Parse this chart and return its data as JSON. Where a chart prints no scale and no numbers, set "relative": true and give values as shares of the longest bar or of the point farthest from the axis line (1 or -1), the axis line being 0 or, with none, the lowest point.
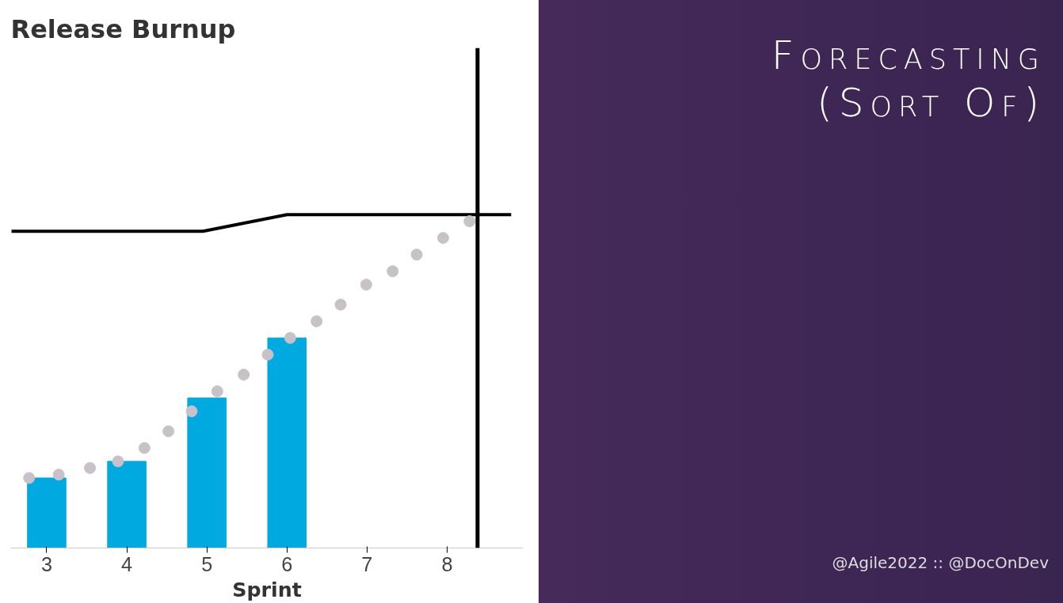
{
  "chart_data": {
    "type": "bar",
    "title": "Release Burnup",
    "xlabel": "Sprint",
    "relative": true,
    "xlim": [
      2.55,
      8.95
    ],
    "xticks": [
      3,
      4,
      5,
      6,
      7,
      8
    ],
    "grid": false,
    "annotations": [
      "Forecasting (Sort Of)",
      "@Agile2022 :: @DocOnDev"
    ],
    "series": [
      {
        "color": "#00a9e0",
        "x": [
          3,
          4,
          5,
          6
        ],
        "values": [
          0.21,
          0.26,
          0.45,
          0.63
        ]
      },
      {
        "type": "line",
        "color": "#000000",
        "x": [
          2.56,
          4.95,
          6.0,
          8.8
        ],
        "values": [
          0.95,
          0.95,
          1.0,
          1.0
        ]
      },
      {
        "type": "scatter",
        "color": "#c8c2c8",
        "marker": "circle",
        "x": [
          2.78,
          3.15,
          3.54,
          3.89,
          4.22,
          4.52,
          4.81,
          5.13,
          5.46,
          5.76,
          6.04,
          6.37,
          6.67,
          6.99,
          7.32,
          7.62,
          7.95,
          8.28
        ],
        "values": [
          0.21,
          0.22,
          0.24,
          0.26,
          0.3,
          0.35,
          0.41,
          0.47,
          0.52,
          0.58,
          0.63,
          0.68,
          0.73,
          0.79,
          0.83,
          0.88,
          0.93,
          0.98
        ]
      }
    ],
    "ref_lines": [
      {
        "axis": "x",
        "value": 8.38,
        "color": "#000000"
      }
    ]
  }
}
